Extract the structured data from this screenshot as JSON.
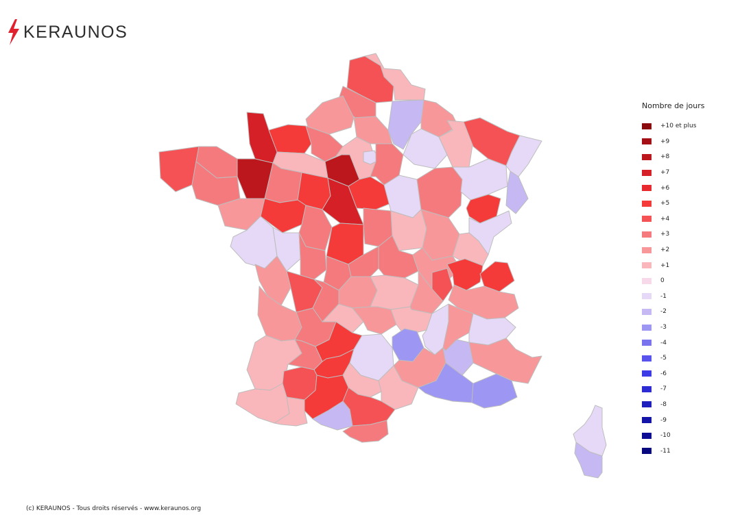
{
  "logo": {
    "text": "KERAUNOS",
    "bolt_color": "#e0212e"
  },
  "legend": {
    "title": "Nombre de jours",
    "items": [
      {
        "label": "+10 et plus",
        "color": "#8b0a0e"
      },
      {
        "label": "+9",
        "color": "#a30f14"
      },
      {
        "label": "+8",
        "color": "#bb171c"
      },
      {
        "label": "+7",
        "color": "#d42026"
      },
      {
        "label": "+6",
        "color": "#e8292e"
      },
      {
        "label": "+5",
        "color": "#f53a3a"
      },
      {
        "label": "+4",
        "color": "#f55256"
      },
      {
        "label": "+3",
        "color": "#f57a7e"
      },
      {
        "label": "+2",
        "color": "#f7979a"
      },
      {
        "label": "+1",
        "color": "#f9b6bb"
      },
      {
        "label": "0",
        "color": "#f7d9e9"
      },
      {
        "label": "-1",
        "color": "#e6d9f7"
      },
      {
        "label": "-2",
        "color": "#c6b9f3"
      },
      {
        "label": "-3",
        "color": "#9d96f2"
      },
      {
        "label": "-4",
        "color": "#7a73ee"
      },
      {
        "label": "-5",
        "color": "#5853ec"
      },
      {
        "label": "-6",
        "color": "#3d3be6"
      },
      {
        "label": "-7",
        "color": "#2d2bd4"
      },
      {
        "label": "-8",
        "color": "#1f1fbd"
      },
      {
        "label": "-9",
        "color": "#1414a8"
      },
      {
        "label": "-10",
        "color": "#0c0c94"
      },
      {
        "label": "-11",
        "color": "#07077e"
      }
    ]
  },
  "footer": {
    "text": "(c) KERAUNOS - Tous droits réservés - www.keraunos.org"
  }
}
